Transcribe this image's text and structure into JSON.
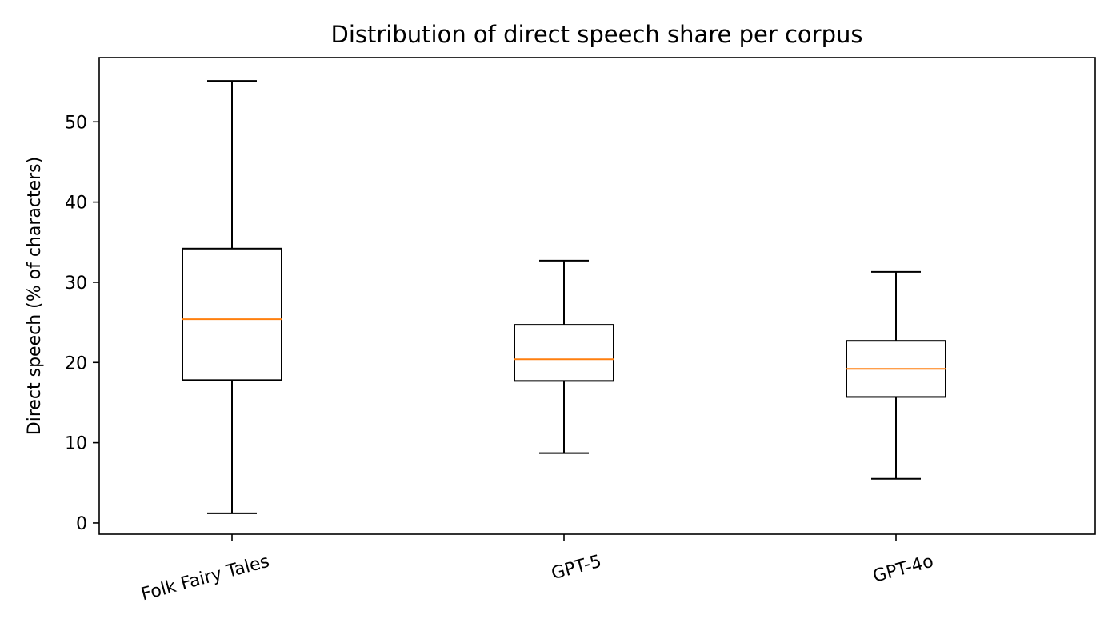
{
  "chart_data": {
    "type": "box",
    "title": "Distribution of direct speech share per corpus",
    "xlabel": "",
    "ylabel": "Direct speech (% of characters)",
    "ylim": [
      -1.4,
      58
    ],
    "yticks": [
      0,
      10,
      20,
      30,
      40,
      50
    ],
    "grid": false,
    "categories": [
      "Folk Fairy Tales",
      "GPT-5",
      "GPT-4o"
    ],
    "boxes": [
      {
        "category": "Folk Fairy Tales",
        "whisker_low": 1.2,
        "q1": 17.8,
        "median": 25.4,
        "q3": 34.2,
        "whisker_high": 55.1
      },
      {
        "category": "GPT-5",
        "whisker_low": 8.7,
        "q1": 17.7,
        "median": 20.4,
        "q3": 24.7,
        "whisker_high": 32.7
      },
      {
        "category": "GPT-4o",
        "whisker_low": 5.5,
        "q1": 15.7,
        "median": 19.2,
        "q3": 22.7,
        "whisker_high": 31.3
      }
    ],
    "colors": {
      "box": "#000000",
      "median": "#ff7f0e",
      "axes": "#000000"
    }
  }
}
